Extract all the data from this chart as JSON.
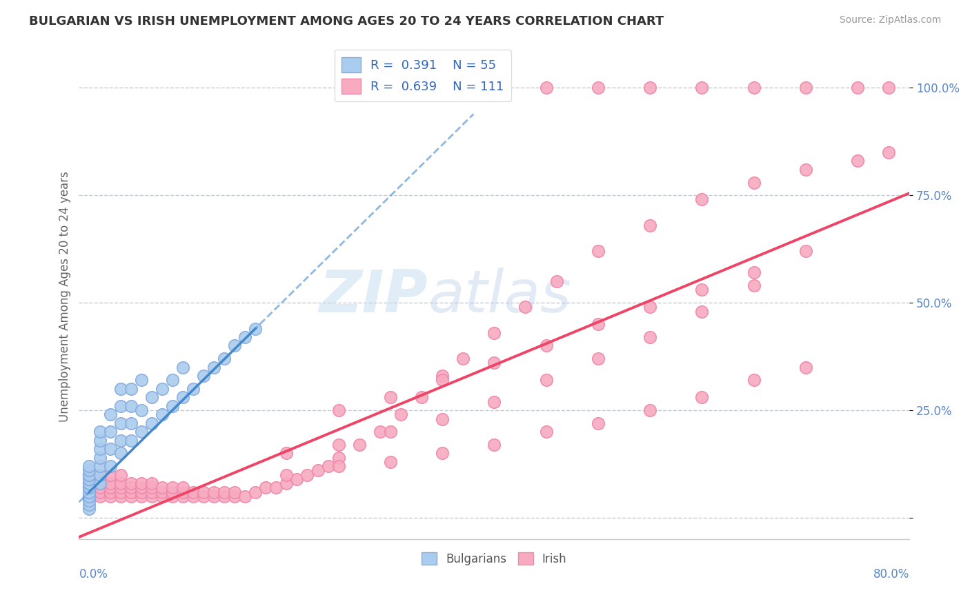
{
  "title": "BULGARIAN VS IRISH UNEMPLOYMENT AMONG AGES 20 TO 24 YEARS CORRELATION CHART",
  "source": "Source: ZipAtlas.com",
  "ylabel": "Unemployment Among Ages 20 to 24 years",
  "xlim": [
    0.0,
    0.8
  ],
  "ylim": [
    -0.05,
    1.08
  ],
  "bg_color": "#ffffff",
  "blue_color": "#aaccee",
  "pink_color": "#f8aac0",
  "blue_edge": "#88aadd",
  "pink_edge": "#ee88aa",
  "trend_blue_color": "#4488cc",
  "trend_pink_color": "#ee4466",
  "grid_color": "#bbccdd",
  "title_color": "#333333",
  "axis_label_color": "#5588cc",
  "watermark_color": "#d8eaf8",
  "legend_label_color": "#3366bb",
  "bulgarian_x": [
    0.01,
    0.01,
    0.01,
    0.01,
    0.01,
    0.01,
    0.01,
    0.01,
    0.01,
    0.01,
    0.01,
    0.01,
    0.01,
    0.01,
    0.01,
    0.01,
    0.01,
    0.02,
    0.02,
    0.02,
    0.02,
    0.02,
    0.02,
    0.02,
    0.03,
    0.03,
    0.03,
    0.03,
    0.04,
    0.04,
    0.04,
    0.04,
    0.04,
    0.05,
    0.05,
    0.05,
    0.05,
    0.06,
    0.06,
    0.06,
    0.07,
    0.07,
    0.08,
    0.08,
    0.09,
    0.09,
    0.1,
    0.1,
    0.11,
    0.12,
    0.13,
    0.14,
    0.15,
    0.16,
    0.17
  ],
  "bulgarian_y": [
    0.02,
    0.03,
    0.04,
    0.05,
    0.05,
    0.06,
    0.06,
    0.07,
    0.07,
    0.08,
    0.08,
    0.09,
    0.09,
    0.1,
    0.1,
    0.11,
    0.12,
    0.08,
    0.1,
    0.12,
    0.14,
    0.16,
    0.18,
    0.2,
    0.12,
    0.16,
    0.2,
    0.24,
    0.15,
    0.18,
    0.22,
    0.26,
    0.3,
    0.18,
    0.22,
    0.26,
    0.3,
    0.2,
    0.25,
    0.32,
    0.22,
    0.28,
    0.24,
    0.3,
    0.26,
    0.32,
    0.28,
    0.35,
    0.3,
    0.33,
    0.35,
    0.37,
    0.4,
    0.42,
    0.44
  ],
  "irish_x": [
    0.01,
    0.01,
    0.01,
    0.02,
    0.02,
    0.02,
    0.02,
    0.02,
    0.03,
    0.03,
    0.03,
    0.03,
    0.03,
    0.04,
    0.04,
    0.04,
    0.04,
    0.04,
    0.05,
    0.05,
    0.05,
    0.05,
    0.06,
    0.06,
    0.06,
    0.06,
    0.07,
    0.07,
    0.07,
    0.07,
    0.08,
    0.08,
    0.08,
    0.09,
    0.09,
    0.09,
    0.1,
    0.1,
    0.1,
    0.11,
    0.11,
    0.12,
    0.12,
    0.13,
    0.13,
    0.14,
    0.14,
    0.15,
    0.15,
    0.16,
    0.17,
    0.18,
    0.19,
    0.2,
    0.21,
    0.22,
    0.23,
    0.24,
    0.25,
    0.27,
    0.29,
    0.31,
    0.33,
    0.35,
    0.37,
    0.4,
    0.43,
    0.46,
    0.5,
    0.55,
    0.6,
    0.65,
    0.7,
    0.75,
    0.78,
    0.2,
    0.25,
    0.3,
    0.35,
    0.4,
    0.45,
    0.5,
    0.55,
    0.6,
    0.65,
    0.25,
    0.3,
    0.35,
    0.4,
    0.45,
    0.5,
    0.55,
    0.6,
    0.65,
    0.7,
    0.2,
    0.25,
    0.3,
    0.35,
    0.4,
    0.45,
    0.5,
    0.55,
    0.6,
    0.65,
    0.7
  ],
  "irish_y": [
    0.05,
    0.07,
    0.1,
    0.05,
    0.06,
    0.07,
    0.08,
    0.1,
    0.05,
    0.06,
    0.07,
    0.08,
    0.1,
    0.05,
    0.06,
    0.07,
    0.08,
    0.1,
    0.05,
    0.06,
    0.07,
    0.08,
    0.05,
    0.06,
    0.07,
    0.08,
    0.05,
    0.06,
    0.07,
    0.08,
    0.05,
    0.06,
    0.07,
    0.05,
    0.06,
    0.07,
    0.05,
    0.06,
    0.07,
    0.05,
    0.06,
    0.05,
    0.06,
    0.05,
    0.06,
    0.05,
    0.06,
    0.05,
    0.06,
    0.05,
    0.06,
    0.07,
    0.07,
    0.08,
    0.09,
    0.1,
    0.11,
    0.12,
    0.14,
    0.17,
    0.2,
    0.24,
    0.28,
    0.33,
    0.37,
    0.43,
    0.49,
    0.55,
    0.62,
    0.68,
    0.74,
    0.78,
    0.81,
    0.83,
    0.85,
    0.15,
    0.17,
    0.2,
    0.23,
    0.27,
    0.32,
    0.37,
    0.42,
    0.48,
    0.54,
    0.25,
    0.28,
    0.32,
    0.36,
    0.4,
    0.45,
    0.49,
    0.53,
    0.57,
    0.62,
    0.1,
    0.12,
    0.13,
    0.15,
    0.17,
    0.2,
    0.22,
    0.25,
    0.28,
    0.32,
    0.35
  ],
  "irish_top_x": [
    0.4,
    0.45,
    0.5,
    0.55,
    0.6,
    0.65,
    0.7,
    0.75,
    0.78
  ],
  "irish_top_y": [
    1.0,
    1.0,
    1.0,
    1.0,
    1.0,
    1.0,
    1.0,
    1.0,
    1.0
  ]
}
